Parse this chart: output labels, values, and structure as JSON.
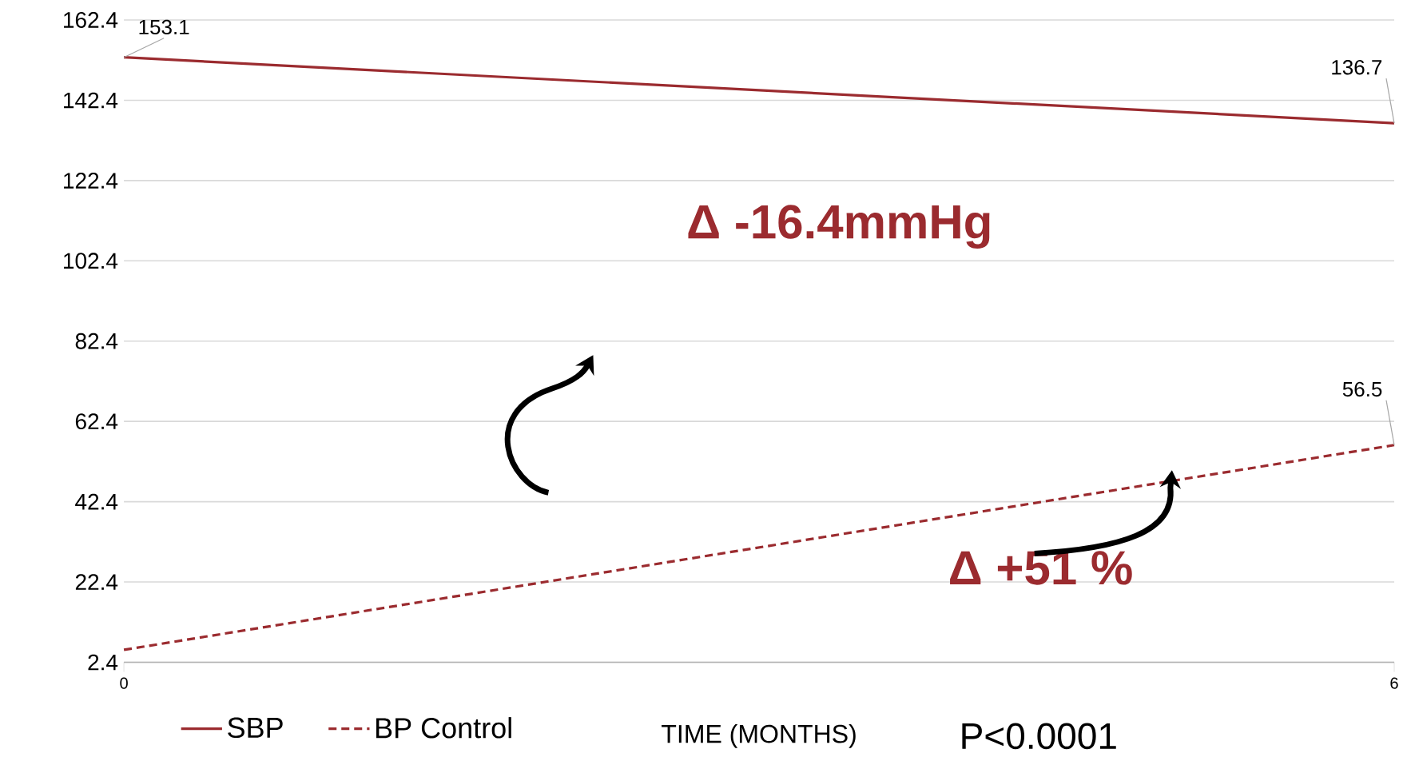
{
  "chart_data": {
    "type": "line",
    "xlabel": "TIME (MONTHS)",
    "x": [
      0,
      6
    ],
    "xlim": [
      0,
      6
    ],
    "xticks": [
      0,
      6
    ],
    "ylim": [
      2.4,
      162.4
    ],
    "yticks": [
      2.4,
      22.4,
      42.4,
      62.4,
      82.4,
      102.4,
      122.4,
      142.4,
      162.4
    ],
    "grid": "y",
    "legend": "bottom",
    "series": [
      {
        "name": "SBP",
        "color": "#9b2b2f",
        "line_style": "solid",
        "values": [
          153.1,
          136.7
        ],
        "value_labels": [
          "153.1",
          "136.7"
        ]
      },
      {
        "name": "BP Control",
        "color": "#9b2b2f",
        "line_style": "dashed",
        "values": [
          5.5,
          56.5
        ],
        "value_labels": [
          null,
          "56.5"
        ]
      }
    ],
    "annotations": [
      "Δ -16.4mmHg",
      "Δ +51 %",
      "P<0.0001"
    ]
  }
}
